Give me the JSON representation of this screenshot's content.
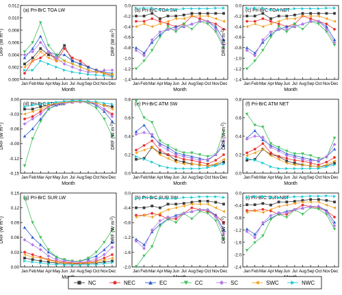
{
  "figure": {
    "months": [
      "Jan",
      "Feb",
      "Mar",
      "Apr",
      "May",
      "Jun",
      "Jul",
      "Aug",
      "Sep",
      "Oct",
      "Nov",
      "Dec"
    ],
    "month_label": "Month",
    "ylabel_prefix": "DRF (W m",
    "ylabel_suffix": ")",
    "ylabel_sup": "-2",
    "legend_location": "bottom"
  },
  "series_styles": [
    {
      "name": "NC",
      "color": "#3a3a3a",
      "marker": "square"
    },
    {
      "name": "NEC",
      "color": "#e8302f",
      "marker": "circle"
    },
    {
      "name": "EC",
      "color": "#2c5fcf",
      "marker": "triangle-up"
    },
    {
      "name": "CC",
      "color": "#3fbf5a",
      "marker": "triangle-down"
    },
    {
      "name": "SC",
      "color": "#b57be6",
      "marker": "diamond"
    },
    {
      "name": "SWC",
      "color": "#f0a020",
      "marker": "triangle-left"
    },
    {
      "name": "NWC",
      "color": "#18c9d4",
      "marker": "triangle-right"
    }
  ],
  "chart_data": [
    {
      "id": "a",
      "type": "line",
      "title": "(a) Pri-BrC TOA LW",
      "ylim": [
        0,
        0.012
      ],
      "yticks": [
        0,
        0.002,
        0.004,
        0.006,
        0.008,
        0.01,
        0.012
      ],
      "tick_labels": [
        "0.000",
        "0.002",
        "0.004",
        "0.006",
        "0.008",
        "0.010",
        "0.012"
      ],
      "series": [
        [
          0.0025,
          0.0035,
          0.005,
          0.004,
          0.0035,
          0.0055,
          0.003,
          0.0025,
          0.002,
          0.0015,
          0.001,
          0.0008
        ],
        [
          0.001,
          0.003,
          0.0035,
          0.0045,
          0.003,
          0.005,
          0.0035,
          0.003,
          0.002,
          0.0015,
          0.001,
          0.0005
        ],
        [
          0.0035,
          0.005,
          0.007,
          0.0045,
          0.004,
          0.004,
          0.003,
          0.0025,
          0.002,
          0.0015,
          0.0012,
          0.001
        ],
        [
          0.0045,
          0.006,
          0.0092,
          0.0055,
          0.004,
          0.003,
          0.0025,
          0.002,
          0.0015,
          0.0012,
          0.001,
          0.0008
        ],
        [
          0.004,
          0.0045,
          0.006,
          0.0045,
          0.0035,
          0.0025,
          0.002,
          0.0015,
          0.0012,
          0.0012,
          0.0015,
          0.0015
        ],
        [
          0.002,
          0.003,
          0.0045,
          0.0035,
          0.003,
          0.003,
          0.0025,
          0.002,
          0.0015,
          0.0012,
          0.001,
          0.0008
        ],
        [
          0.0015,
          0.0015,
          0.003,
          0.0025,
          0.002,
          0.0015,
          0.0012,
          0.001,
          0.0008,
          0.0007,
          0.0006,
          0.0005
        ]
      ]
    },
    {
      "id": "b",
      "type": "line",
      "title": "(b) Pri-BrC TOA SW",
      "ylim": [
        -1.4,
        0
      ],
      "yticks": [
        0,
        -0.2,
        -0.4,
        -0.6,
        -0.8,
        -1.0,
        -1.2,
        -1.4
      ],
      "tick_labels": [
        "0.0",
        "-0.2",
        "-0.4",
        "-0.6",
        "-0.8",
        "-1.0",
        "-1.2",
        "-1.4"
      ],
      "series": [
        [
          -0.2,
          -0.2,
          -0.15,
          -0.25,
          -0.2,
          -0.2,
          -0.18,
          -0.15,
          -0.15,
          -0.15,
          -0.15,
          -0.15
        ],
        [
          -0.3,
          -0.3,
          -0.25,
          -0.3,
          -0.35,
          -0.4,
          -0.35,
          -0.2,
          -0.25,
          -0.3,
          -0.35,
          -0.45
        ],
        [
          -0.8,
          -0.9,
          -0.7,
          -0.55,
          -0.45,
          -0.4,
          -0.4,
          -0.35,
          -0.3,
          -0.3,
          -0.4,
          -0.65
        ],
        [
          -1.2,
          -1.05,
          -0.85,
          -0.6,
          -0.4,
          -0.5,
          -0.35,
          -0.45,
          -0.3,
          -0.35,
          -0.5,
          -0.8
        ],
        [
          -0.85,
          -0.95,
          -0.65,
          -0.5,
          -0.45,
          -0.45,
          -0.4,
          -0.35,
          -0.3,
          -0.3,
          -0.45,
          -0.75
        ],
        [
          -0.4,
          -0.35,
          -0.4,
          -0.35,
          -0.3,
          -0.25,
          -0.25,
          -0.2,
          -0.2,
          -0.2,
          -0.25,
          -0.3
        ],
        [
          -0.05,
          -0.05,
          -0.05,
          -0.08,
          -0.08,
          -0.08,
          -0.06,
          -0.06,
          -0.06,
          -0.06,
          -0.05,
          -0.05
        ]
      ]
    },
    {
      "id": "c",
      "type": "line",
      "title": "(c) Pri-BrC TOA NET",
      "ylim": [
        -1.4,
        0
      ],
      "yticks": [
        0,
        -0.2,
        -0.4,
        -0.6,
        -0.8,
        -1.0,
        -1.2,
        -1.4
      ],
      "tick_labels": [
        "0.0",
        "-0.2",
        "-0.4",
        "-0.6",
        "-0.8",
        "-1.0",
        "-1.2",
        "-1.4"
      ],
      "series": [
        [
          -0.2,
          -0.2,
          -0.15,
          -0.25,
          -0.2,
          -0.2,
          -0.18,
          -0.15,
          -0.15,
          -0.15,
          -0.15,
          -0.15
        ],
        [
          -0.3,
          -0.3,
          -0.25,
          -0.3,
          -0.35,
          -0.4,
          -0.35,
          -0.2,
          -0.25,
          -0.3,
          -0.35,
          -0.45
        ],
        [
          -0.8,
          -0.9,
          -0.7,
          -0.55,
          -0.45,
          -0.4,
          -0.4,
          -0.35,
          -0.3,
          -0.3,
          -0.4,
          -0.65
        ],
        [
          -1.2,
          -1.05,
          -0.85,
          -0.6,
          -0.4,
          -0.5,
          -0.35,
          -0.45,
          -0.3,
          -0.35,
          -0.5,
          -0.75
        ],
        [
          -0.85,
          -0.95,
          -0.65,
          -0.5,
          -0.45,
          -0.45,
          -0.4,
          -0.35,
          -0.3,
          -0.3,
          -0.45,
          -0.7
        ],
        [
          -0.4,
          -0.35,
          -0.4,
          -0.35,
          -0.3,
          -0.25,
          -0.25,
          -0.2,
          -0.2,
          -0.2,
          -0.25,
          -0.3
        ],
        [
          -0.05,
          -0.05,
          -0.05,
          -0.08,
          -0.08,
          -0.08,
          -0.06,
          -0.06,
          -0.06,
          -0.06,
          -0.05,
          -0.05
        ]
      ]
    },
    {
      "id": "d",
      "type": "line",
      "title": "(d) Pri-BrC ATM LW",
      "ylim": [
        -0.15,
        0
      ],
      "yticks": [
        0,
        -0.03,
        -0.06,
        -0.09,
        -0.12,
        -0.15
      ],
      "tick_labels": [
        "0.00",
        "-0.03",
        "-0.06",
        "-0.09",
        "-0.12",
        "-0.15"
      ],
      "series": [
        [
          -0.02,
          -0.02,
          -0.015,
          -0.012,
          -0.01,
          -0.008,
          -0.006,
          -0.005,
          -0.006,
          -0.008,
          -0.012,
          -0.015
        ],
        [
          -0.04,
          -0.035,
          -0.025,
          -0.015,
          -0.01,
          -0.008,
          -0.006,
          -0.005,
          -0.006,
          -0.01,
          -0.02,
          -0.03
        ],
        [
          -0.075,
          -0.06,
          -0.04,
          -0.02,
          -0.012,
          -0.008,
          -0.005,
          -0.004,
          -0.006,
          -0.012,
          -0.025,
          -0.045
        ],
        [
          -0.135,
          -0.08,
          -0.045,
          -0.02,
          -0.01,
          -0.006,
          -0.004,
          -0.004,
          -0.008,
          -0.018,
          -0.04,
          -0.075
        ],
        [
          -0.05,
          -0.04,
          -0.03,
          -0.015,
          -0.01,
          -0.008,
          -0.006,
          -0.005,
          -0.006,
          -0.01,
          -0.02,
          -0.035
        ],
        [
          -0.03,
          -0.025,
          -0.02,
          -0.012,
          -0.008,
          -0.006,
          -0.005,
          -0.004,
          -0.005,
          -0.008,
          -0.012,
          -0.02
        ],
        [
          -0.015,
          -0.012,
          -0.01,
          -0.008,
          -0.006,
          -0.004,
          -0.003,
          -0.003,
          -0.004,
          -0.005,
          -0.008,
          -0.01
        ]
      ]
    },
    {
      "id": "e",
      "type": "line",
      "title": "(e) Pri-BrC ATM SW",
      "ylim": [
        0,
        0.8
      ],
      "yticks": [
        0,
        0.2,
        0.4,
        0.6,
        0.8
      ],
      "tick_labels": [
        "0.0",
        "0.2",
        "0.4",
        "0.6",
        "0.8"
      ],
      "series": [
        [
          0.15,
          0.16,
          0.28,
          0.22,
          0.2,
          0.14,
          0.12,
          0.1,
          0.09,
          0.08,
          0.09,
          0.12
        ],
        [
          0.25,
          0.3,
          0.35,
          0.25,
          0.2,
          0.18,
          0.15,
          0.14,
          0.12,
          0.1,
          0.14,
          0.2
        ],
        [
          0.45,
          0.52,
          0.4,
          0.32,
          0.28,
          0.22,
          0.2,
          0.18,
          0.16,
          0.14,
          0.2,
          0.3
        ],
        [
          0.78,
          0.6,
          0.55,
          0.35,
          0.3,
          0.25,
          0.22,
          0.22,
          0.2,
          0.18,
          0.2,
          0.45
        ],
        [
          0.42,
          0.44,
          0.42,
          0.3,
          0.25,
          0.2,
          0.18,
          0.16,
          0.14,
          0.15,
          0.2,
          0.35
        ],
        [
          0.22,
          0.25,
          0.28,
          0.2,
          0.16,
          0.12,
          0.1,
          0.1,
          0.09,
          0.08,
          0.1,
          0.15
        ],
        [
          0.18,
          0.15,
          0.12,
          0.08,
          0.06,
          0.05,
          0.05,
          0.05,
          0.05,
          0.06,
          0.08,
          0.1
        ]
      ]
    },
    {
      "id": "f",
      "type": "line",
      "title": "(f) Pri-BrC ATM NET",
      "ylim": [
        0,
        0.8
      ],
      "yticks": [
        0,
        0.2,
        0.4,
        0.6,
        0.8
      ],
      "tick_labels": [
        "0.0",
        "0.2",
        "0.4",
        "0.6",
        "0.8"
      ],
      "series": [
        [
          0.14,
          0.15,
          0.26,
          0.2,
          0.18,
          0.13,
          0.11,
          0.09,
          0.08,
          0.07,
          0.08,
          0.11
        ],
        [
          0.22,
          0.26,
          0.32,
          0.22,
          0.18,
          0.16,
          0.14,
          0.13,
          0.11,
          0.09,
          0.12,
          0.17
        ],
        [
          0.38,
          0.46,
          0.36,
          0.3,
          0.26,
          0.21,
          0.19,
          0.17,
          0.15,
          0.13,
          0.18,
          0.26
        ],
        [
          0.64,
          0.52,
          0.5,
          0.32,
          0.28,
          0.24,
          0.21,
          0.21,
          0.19,
          0.16,
          0.17,
          0.38
        ],
        [
          0.37,
          0.4,
          0.39,
          0.28,
          0.24,
          0.19,
          0.17,
          0.15,
          0.13,
          0.14,
          0.18,
          0.31
        ],
        [
          0.19,
          0.22,
          0.26,
          0.19,
          0.15,
          0.11,
          0.09,
          0.09,
          0.08,
          0.07,
          0.09,
          0.13
        ],
        [
          0.16,
          0.14,
          0.11,
          0.07,
          0.05,
          0.05,
          0.05,
          0.05,
          0.05,
          0.05,
          0.07,
          0.09
        ]
      ]
    },
    {
      "id": "g",
      "type": "line",
      "title": "(g) Pri-BrC SUR LW",
      "ylim": [
        0,
        0.15
      ],
      "yticks": [
        0,
        0.03,
        0.06,
        0.09,
        0.12,
        0.15
      ],
      "tick_labels": [
        "0.00",
        "0.03",
        "0.06",
        "0.09",
        "0.12",
        "0.15"
      ],
      "series": [
        [
          0.018,
          0.015,
          0.012,
          0.01,
          0.008,
          0.007,
          0.006,
          0.006,
          0.007,
          0.008,
          0.01,
          0.012
        ],
        [
          0.03,
          0.025,
          0.02,
          0.015,
          0.012,
          0.01,
          0.008,
          0.008,
          0.01,
          0.012,
          0.018,
          0.025
        ],
        [
          0.08,
          0.06,
          0.045,
          0.03,
          0.02,
          0.014,
          0.012,
          0.012,
          0.016,
          0.022,
          0.035,
          0.05
        ],
        [
          0.14,
          0.09,
          0.06,
          0.035,
          0.02,
          0.015,
          0.012,
          0.012,
          0.018,
          0.03,
          0.05,
          0.075
        ],
        [
          0.055,
          0.045,
          0.035,
          0.022,
          0.015,
          0.012,
          0.01,
          0.01,
          0.012,
          0.016,
          0.025,
          0.04
        ],
        [
          0.025,
          0.02,
          0.018,
          0.014,
          0.01,
          0.008,
          0.007,
          0.007,
          0.008,
          0.01,
          0.014,
          0.018
        ],
        [
          0.012,
          0.01,
          0.008,
          0.006,
          0.005,
          0.004,
          0.004,
          0.004,
          0.004,
          0.005,
          0.007,
          0.009
        ]
      ]
    },
    {
      "id": "h",
      "type": "line",
      "title": "(h) Pri-BrC SUR SW",
      "ylim": [
        -2.0,
        0
      ],
      "yticks": [
        0,
        -0.4,
        -0.8,
        -1.2,
        -1.6,
        -2.0
      ],
      "tick_labels": [
        "0.0",
        "-0.4",
        "-0.8",
        "-1.2",
        "-1.6",
        "-2.0"
      ],
      "series": [
        [
          -0.4,
          -0.4,
          -0.35,
          -0.4,
          -0.3,
          -0.3,
          -0.28,
          -0.25,
          -0.22,
          -0.22,
          -0.25,
          -0.3
        ],
        [
          -0.6,
          -0.6,
          -0.55,
          -0.6,
          -0.7,
          -0.7,
          -0.55,
          -0.4,
          -0.45,
          -0.5,
          -0.6,
          -0.8
        ],
        [
          -1.25,
          -1.4,
          -1.05,
          -0.85,
          -0.7,
          -0.6,
          -0.55,
          -0.5,
          -0.45,
          -0.45,
          -0.6,
          -1.0
        ],
        [
          -2.0,
          -1.7,
          -1.45,
          -0.9,
          -0.7,
          -0.8,
          -0.55,
          -0.7,
          -0.5,
          -0.55,
          -0.75,
          -1.25
        ],
        [
          -1.3,
          -1.5,
          -1.0,
          -0.75,
          -0.65,
          -0.65,
          -0.55,
          -0.5,
          -0.45,
          -0.45,
          -0.65,
          -1.1
        ],
        [
          -0.65,
          -0.6,
          -0.65,
          -0.55,
          -0.45,
          -0.4,
          -0.35,
          -0.3,
          -0.3,
          -0.3,
          -0.4,
          -0.5
        ],
        [
          -0.15,
          -0.12,
          -0.12,
          -0.15,
          -0.15,
          -0.15,
          -0.12,
          -0.12,
          -0.1,
          -0.1,
          -0.1,
          -0.12
        ]
      ]
    },
    {
      "id": "i",
      "type": "line",
      "title": "(i) Pri-BrC SUR NET",
      "ylim": [
        -2.4,
        0
      ],
      "yticks": [
        0,
        -0.4,
        -0.8,
        -1.2,
        -1.6,
        -2.0,
        -2.4
      ],
      "tick_labels": [
        "0.0",
        "-0.4",
        "-0.8",
        "-1.2",
        "-1.6",
        "-2.0",
        "-2.4"
      ],
      "series": [
        [
          -0.38,
          -0.38,
          -0.34,
          -0.39,
          -0.29,
          -0.29,
          -0.27,
          -0.24,
          -0.21,
          -0.21,
          -0.24,
          -0.29
        ],
        [
          -0.57,
          -0.57,
          -0.53,
          -0.58,
          -0.69,
          -0.69,
          -0.54,
          -0.39,
          -0.44,
          -0.49,
          -0.58,
          -0.78
        ],
        [
          -1.17,
          -1.34,
          -1.0,
          -0.82,
          -0.68,
          -0.59,
          -0.54,
          -0.49,
          -0.44,
          -0.43,
          -0.57,
          -0.95
        ],
        [
          -1.86,
          -1.61,
          -1.39,
          -0.86,
          -0.68,
          -0.79,
          -0.54,
          -0.69,
          -0.48,
          -0.52,
          -0.7,
          -1.17
        ],
        [
          -1.25,
          -1.45,
          -0.96,
          -0.73,
          -0.64,
          -0.64,
          -0.54,
          -0.49,
          -0.44,
          -0.43,
          -0.62,
          -1.06
        ],
        [
          -0.63,
          -0.58,
          -0.63,
          -0.54,
          -0.44,
          -0.39,
          -0.34,
          -0.29,
          -0.29,
          -0.29,
          -0.39,
          -0.48
        ],
        [
          -0.14,
          -0.11,
          -0.11,
          -0.14,
          -0.15,
          -0.15,
          -0.12,
          -0.12,
          -0.1,
          -0.1,
          -0.09,
          -0.11
        ]
      ]
    }
  ]
}
